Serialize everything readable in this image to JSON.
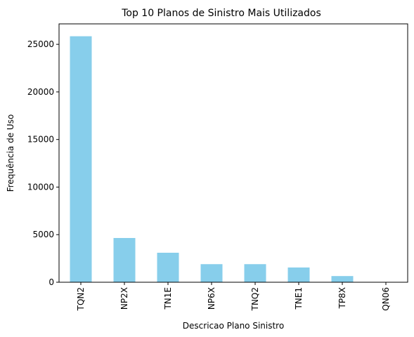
{
  "chart_data": {
    "type": "bar",
    "title": "Top 10 Planos de Sinistro Mais Utilizados",
    "xlabel": "Descricao Plano Sinistro",
    "ylabel": "Frequência de Uso",
    "categories": [
      "TQN2",
      "NP2X",
      "TN1E",
      "NP6X",
      "TNQ2",
      "TNE1",
      "TP8X",
      "QN06"
    ],
    "values": [
      25850,
      4650,
      3100,
      1900,
      1900,
      1550,
      650,
      30
    ],
    "ylim": [
      0,
      27150
    ],
    "yticks": [
      0,
      5000,
      10000,
      15000,
      20000,
      25000
    ],
    "bar_color": "#87ceeb",
    "grid": false,
    "legend": "none"
  }
}
